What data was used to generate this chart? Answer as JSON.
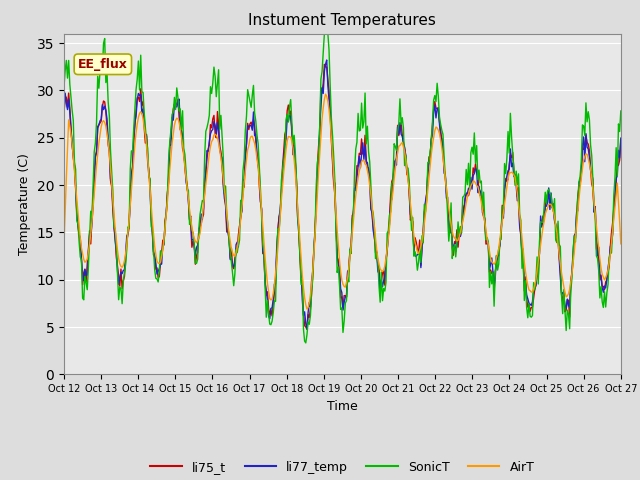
{
  "title": "Instument Temperatures",
  "xlabel": "Time",
  "ylabel": "Temperature (C)",
  "ylim": [
    0,
    36
  ],
  "yticks": [
    0,
    5,
    10,
    15,
    20,
    25,
    30,
    35
  ],
  "x_labels": [
    "Oct 12",
    "Oct 13",
    "Oct 14",
    "Oct 15",
    "Oct 16",
    "Oct 17",
    "Oct 18",
    "Oct 19",
    "Oct 20",
    "Oct 21",
    "Oct 22",
    "Oct 23",
    "Oct 24",
    "Oct 25",
    "Oct 26",
    "Oct 27"
  ],
  "annotation_text": "EE_flux",
  "colors": {
    "li75_t": "#cc0000",
    "li77_temp": "#2222cc",
    "SonicT": "#00bb00",
    "AirT": "#ff9900"
  },
  "background_color": "#e8e8e8",
  "grid_color": "#ffffff",
  "title_fontsize": 11,
  "axis_fontsize": 9,
  "tick_fontsize": 7,
  "legend_fontsize": 9,
  "n_points": 480,
  "figsize": [
    6.4,
    4.8
  ],
  "dpi": 100
}
